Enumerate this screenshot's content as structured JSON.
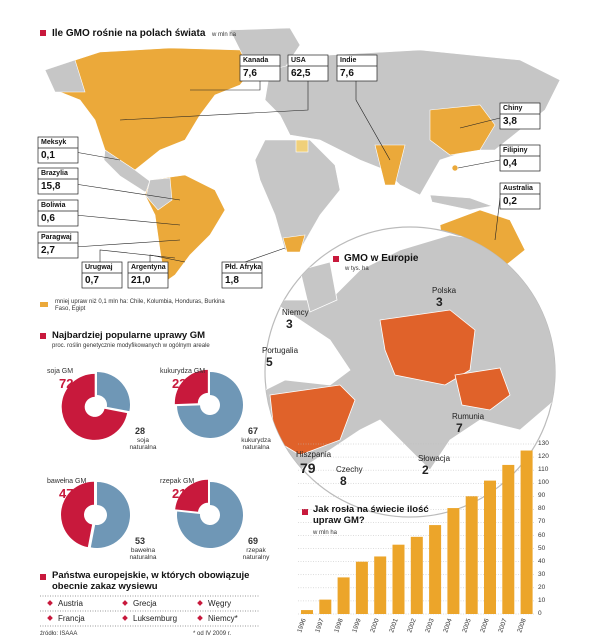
{
  "world": {
    "title": "Ile GMO rośnie na polach świata",
    "unit": "w mln ha",
    "note": "mniej upraw niż 0,1 mln ha: Chile, Kolumbia, Honduras, Burkina Faso, Egipt",
    "countries": [
      {
        "name": "Kanada",
        "value": "7,6"
      },
      {
        "name": "USA",
        "value": "62,5"
      },
      {
        "name": "Indie",
        "value": "7,6"
      },
      {
        "name": "Chiny",
        "value": "3,8"
      },
      {
        "name": "Filipiny",
        "value": "0,4"
      },
      {
        "name": "Australia",
        "value": "0,2"
      },
      {
        "name": "Meksyk",
        "value": "0,1"
      },
      {
        "name": "Brazylia",
        "value": "15,8"
      },
      {
        "name": "Boliwia",
        "value": "0,6"
      },
      {
        "name": "Paragwaj",
        "value": "2,7"
      },
      {
        "name": "Urugwaj",
        "value": "0,7"
      },
      {
        "name": "Argentyna",
        "value": "21,0"
      },
      {
        "name": "Płd. Afryka",
        "value": "1,8"
      }
    ]
  },
  "europe": {
    "title": "GMO w Europie",
    "unit": "w tys. ha",
    "countries": [
      {
        "name": "Niemcy",
        "value": 3
      },
      {
        "name": "Polska",
        "value": 3
      },
      {
        "name": "Portugalia",
        "value": 5
      },
      {
        "name": "Hiszpania",
        "value": 79
      },
      {
        "name": "Czechy",
        "value": 8
      },
      {
        "name": "Słowacja",
        "value": 2
      },
      {
        "name": "Rumunia",
        "value": 7
      }
    ]
  },
  "crops": {
    "title": "Najbardziej popularne uprawy GM",
    "subtitle": "proc. roślin genetycznie modyfikowanych w ogólnym areale"
  },
  "chart_data": [
    {
      "type": "pie",
      "categories": [
        "soja GM",
        "soja naturalna"
      ],
      "values": [
        72,
        28
      ],
      "colors": [
        "#c8193c",
        "#6f97b6"
      ]
    },
    {
      "type": "pie",
      "categories": [
        "kukurydza GM",
        "kukurydza naturalna"
      ],
      "values": [
        23,
        67
      ],
      "colors": [
        "#c8193c",
        "#6f97b6"
      ]
    },
    {
      "type": "pie",
      "categories": [
        "bawełna GM",
        "bawełna naturalna"
      ],
      "values": [
        47,
        53
      ],
      "colors": [
        "#c8193c",
        "#6f97b6"
      ]
    },
    {
      "type": "pie",
      "categories": [
        "rzepak GM",
        "rzepak naturalny"
      ],
      "values": [
        21,
        69
      ],
      "colors": [
        "#c8193c",
        "#6f97b6"
      ]
    },
    {
      "type": "bar",
      "title": "Jak rosła na świecie ilość upraw GM?",
      "subtitle": "w mln ha",
      "categories": [
        "1996",
        "1997",
        "1998",
        "1999",
        "2000",
        "2001",
        "2002",
        "2003",
        "2004",
        "2005",
        "2006",
        "2007",
        "2008"
      ],
      "values": [
        3,
        11,
        28,
        40,
        44,
        53,
        59,
        68,
        81,
        90,
        102,
        114,
        125
      ],
      "color": "#eca52a",
      "ylim": [
        0,
        130
      ],
      "yticks": [
        0,
        10,
        20,
        30,
        40,
        50,
        60,
        70,
        80,
        90,
        100,
        110,
        120,
        130
      ],
      "grid": true
    }
  ],
  "ban": {
    "title": "Państwa europejskie, w których obowiązuje obecnie zakaz wysiewu",
    "countries": [
      "Austria",
      "Grecja",
      "Węgry",
      "Francja",
      "Luksemburg",
      "Niemcy*"
    ],
    "source": "źródło: ISAAA",
    "footnote": "* od IV 2009 r."
  }
}
